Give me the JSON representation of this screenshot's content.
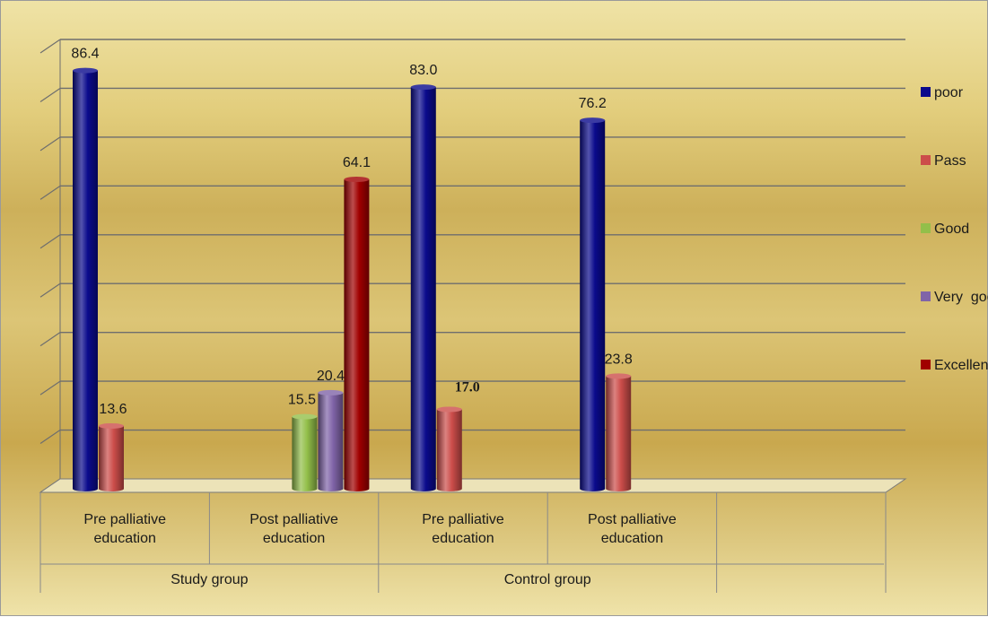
{
  "chart_data": {
    "type": "bar",
    "categories": [
      "Pre palliative\neducation",
      "Post palliative\neducation",
      "Pre palliative\neducation",
      "Post palliative\neducation"
    ],
    "groups": [
      {
        "label": "Study group"
      },
      {
        "label": "Control group"
      }
    ],
    "series": [
      {
        "name": "poor",
        "color": "#0a0a8c",
        "values": [
          86.4,
          null,
          83.0,
          76.2
        ]
      },
      {
        "name": "Pass",
        "color": "#cc4d4a",
        "values": [
          13.6,
          null,
          17.0,
          23.8
        ]
      },
      {
        "name": "Good",
        "color": "#93bf4a",
        "values": [
          null,
          15.5,
          null,
          null
        ]
      },
      {
        "name": "Very  good",
        "color": "#8064a8",
        "values": [
          null,
          20.4,
          null,
          null
        ]
      },
      {
        "name": "Excellent",
        "color": "#a00000",
        "values": [
          null,
          64.1,
          null,
          null
        ]
      }
    ],
    "data_labels": [
      {
        "text": "86.4",
        "series": 0,
        "category": 0
      },
      {
        "text": "13.6",
        "series": 1,
        "category": 0
      },
      {
        "text": "15.5",
        "series": 2,
        "category": 1
      },
      {
        "text": "20.4",
        "series": 3,
        "category": 1
      },
      {
        "text": "64.1",
        "series": 4,
        "category": 1
      },
      {
        "text": "83.0",
        "series": 0,
        "category": 2
      },
      {
        "text": "17.0",
        "series": 1,
        "category": 2,
        "bold": true
      },
      {
        "text": "76.2",
        "series": 0,
        "category": 3
      },
      {
        "text": "23.8",
        "series": 1,
        "category": 3
      }
    ],
    "ylim": [
      0,
      90
    ],
    "ytick_step": 10,
    "grid": true,
    "legend": "right",
    "title": "",
    "xlabel": "",
    "ylabel": ""
  }
}
